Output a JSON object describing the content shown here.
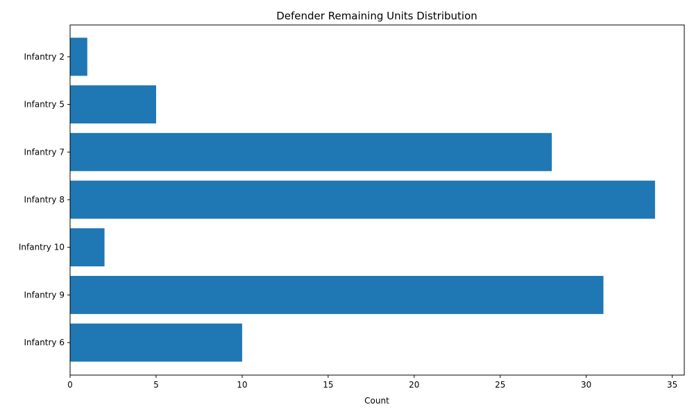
{
  "chart_data": {
    "type": "bar",
    "orientation": "horizontal",
    "title": "Defender Remaining Units Distribution",
    "xlabel": "Count",
    "ylabel": "",
    "categories": [
      "Infantry 2",
      "Infantry 5",
      "Infantry 7",
      "Infantry 8",
      "Infantry 10",
      "Infantry 9",
      "Infantry 6"
    ],
    "values": [
      1,
      5,
      28,
      34,
      2,
      31,
      10
    ],
    "xlim": [
      0,
      35.7
    ],
    "xticks": [
      0,
      5,
      10,
      15,
      20,
      25,
      30,
      35
    ],
    "grid": false,
    "legend": "none",
    "bar_color": "#1f77b4"
  }
}
